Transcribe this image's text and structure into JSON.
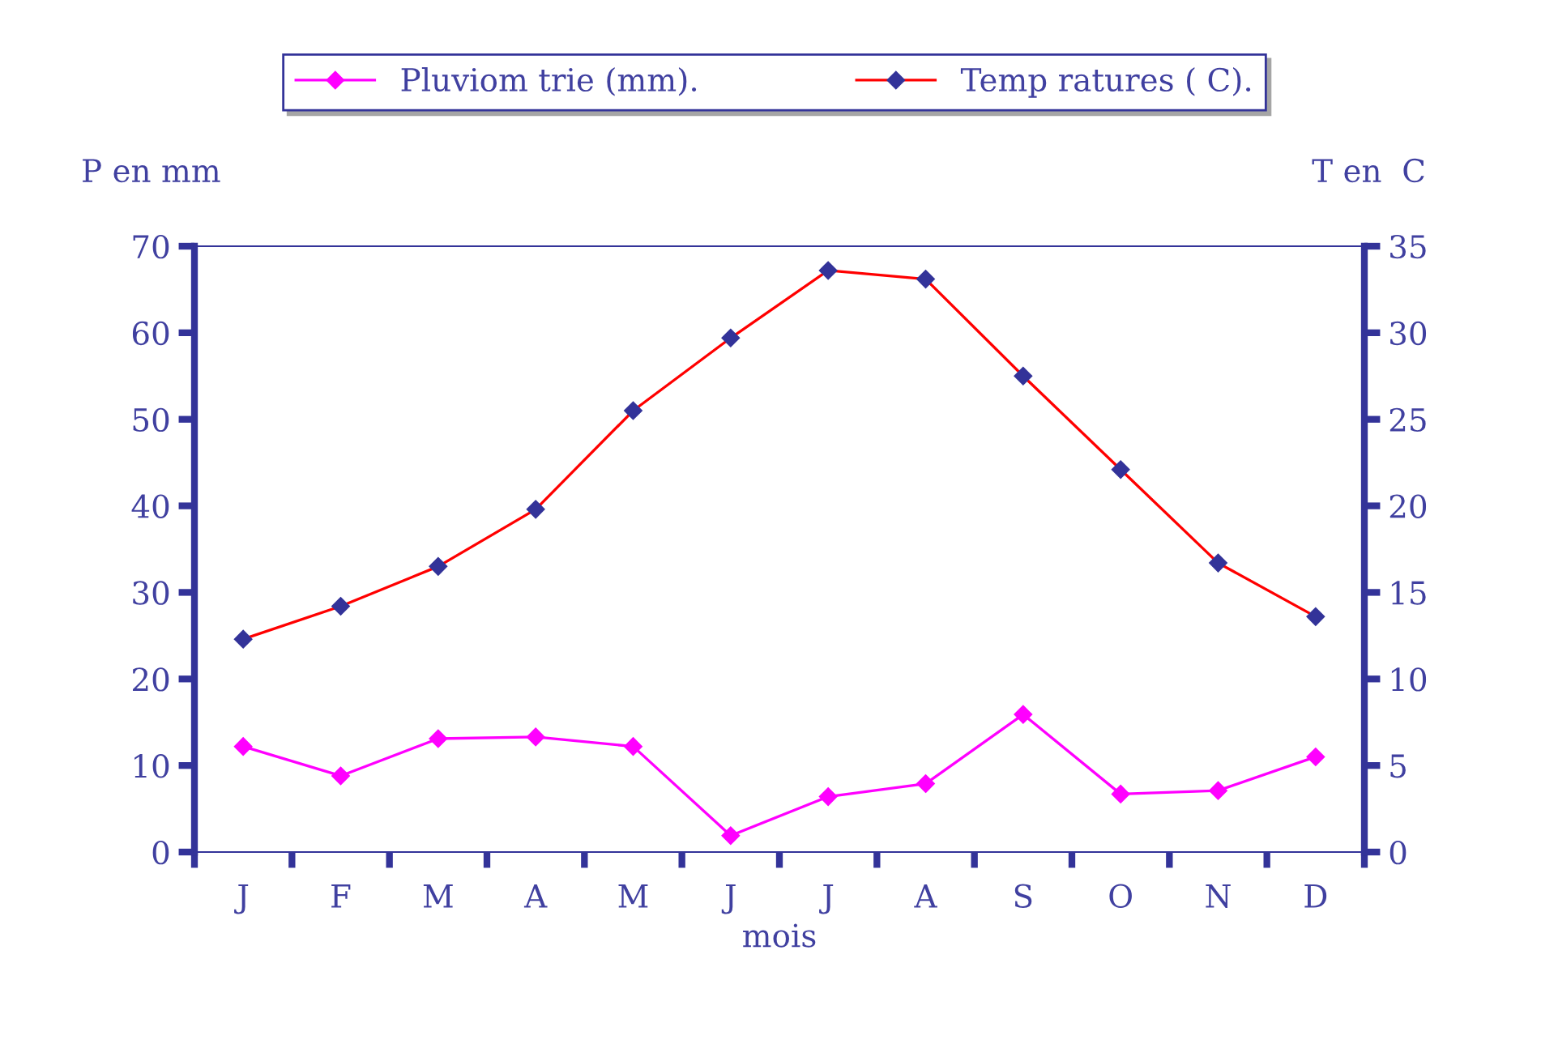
{
  "chart_data": {
    "type": "line",
    "ylabel": "P en mm",
    "y2label": "T en  C",
    "xlabel": "mois",
    "categories": [
      "J",
      "F",
      "M",
      "A",
      "M",
      "J",
      "J",
      "A",
      "S",
      "O",
      "N",
      "D"
    ],
    "series": [
      {
        "name": "Pluviom trie (mm).",
        "color": "#ff00ff",
        "values": [
          12.2,
          8.8,
          13.1,
          13.3,
          12.2,
          1.9,
          6.4,
          7.9,
          15.9,
          6.7,
          7.1,
          11.0
        ]
      },
      {
        "name": "Temp ratures ( C).",
        "color": "#ff0000",
        "axis": "y2",
        "values": [
          12.3,
          14.2,
          16.5,
          19.8,
          25.5,
          29.7,
          33.6,
          33.1,
          27.5,
          22.1,
          16.7,
          13.6
        ]
      }
    ],
    "ylim": [
      0,
      70
    ],
    "yticks": [
      0,
      10,
      20,
      30,
      40,
      50,
      60,
      70
    ],
    "y2lim": [
      0,
      35
    ],
    "y2ticks": [
      0,
      5,
      10,
      15,
      20,
      25,
      30,
      35
    ],
    "marker": "diamond",
    "grid": false,
    "legend": "top"
  }
}
